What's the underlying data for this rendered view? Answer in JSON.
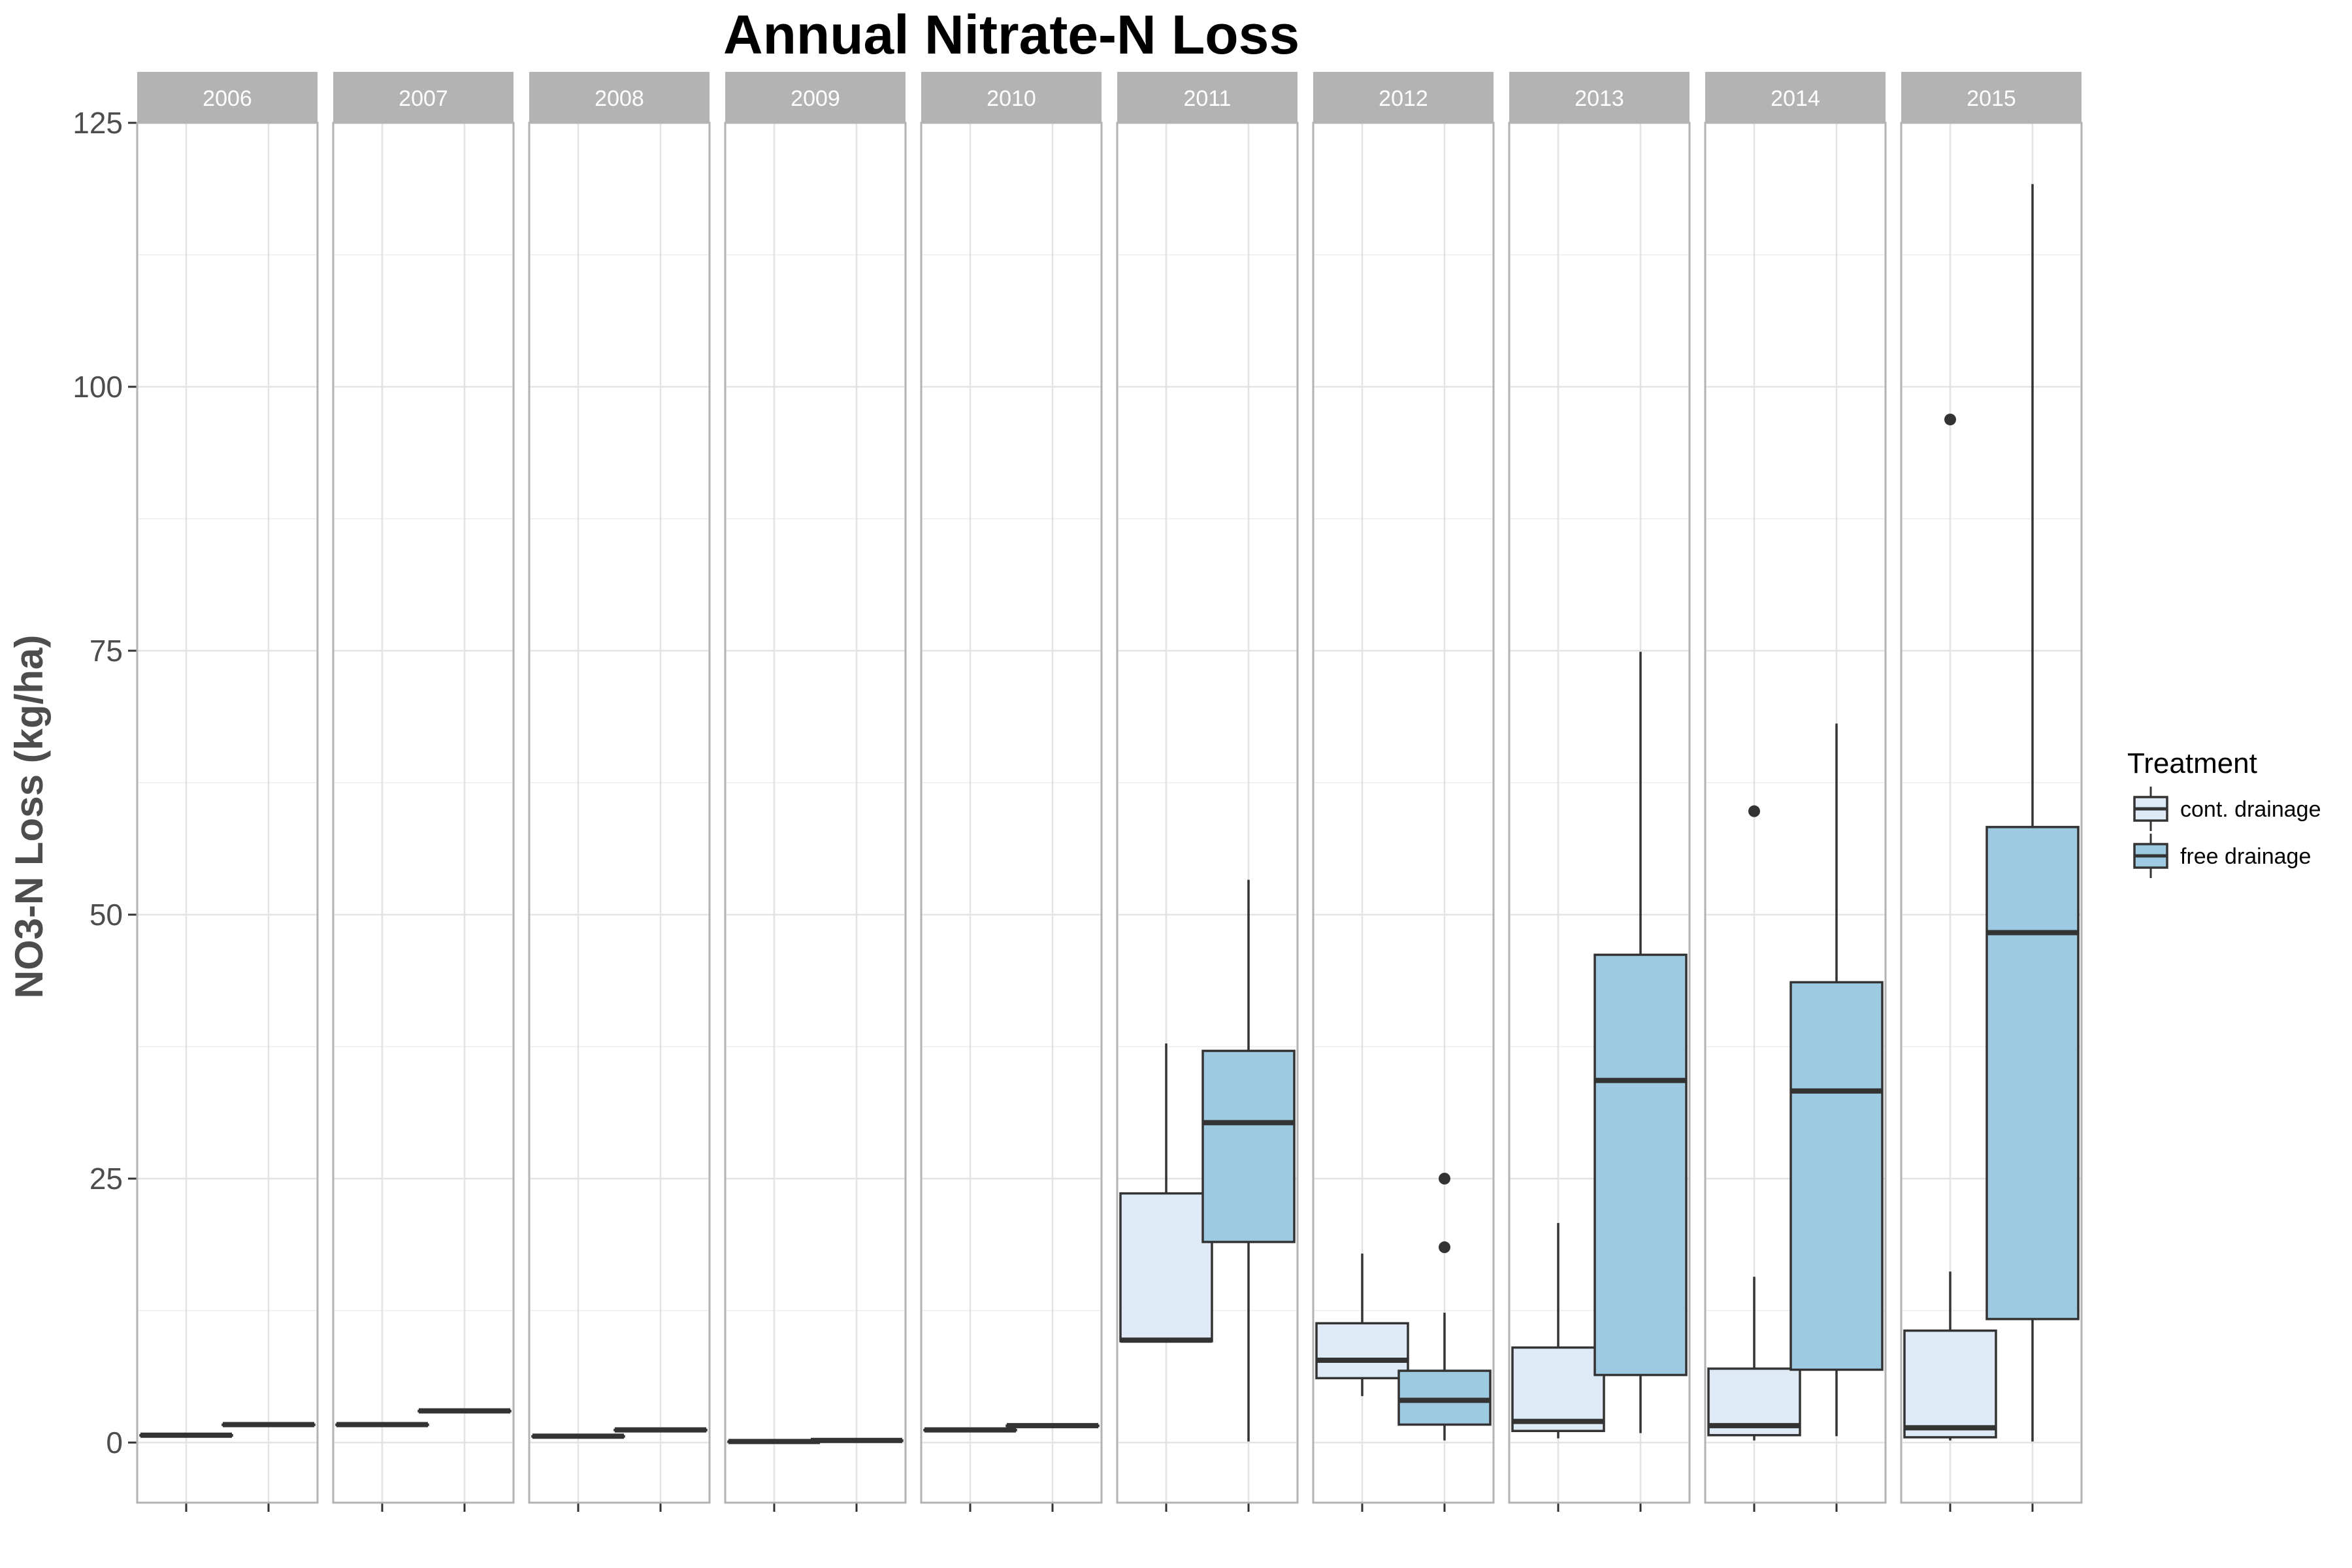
{
  "chart_data": {
    "type": "box",
    "title": "Annual Nitrate-N Loss",
    "xlabel": "",
    "ylabel": "NO3-N Loss (kg/ha)",
    "ylim": [
      -6,
      126
    ],
    "y_ticks": [
      0,
      25,
      50,
      75,
      100,
      125
    ],
    "grid": true,
    "legend": {
      "title": "Treatment",
      "placement": "right",
      "entries": [
        {
          "name": "cont. drainage",
          "color": "#deebf7"
        },
        {
          "name": "free drainage",
          "color": "#9ecae1"
        }
      ]
    },
    "facets": [
      "2006",
      "2007",
      "2008",
      "2009",
      "2010",
      "2011",
      "2012",
      "2013",
      "2014",
      "2015"
    ],
    "series": [
      {
        "name": "cont. drainage",
        "color": "#deebf7",
        "boxes": [
          {
            "facet": "2006",
            "min": 0.7,
            "q1": 0.7,
            "median": 0.7,
            "q3": 0.7,
            "max": 0.7,
            "outliers": []
          },
          {
            "facet": "2007",
            "min": 1.7,
            "q1": 1.7,
            "median": 1.7,
            "q3": 1.7,
            "max": 1.7,
            "outliers": []
          },
          {
            "facet": "2008",
            "min": 0.6,
            "q1": 0.6,
            "median": 0.6,
            "q3": 0.6,
            "max": 0.6,
            "outliers": []
          },
          {
            "facet": "2009",
            "min": 0.1,
            "q1": 0.1,
            "median": 0.1,
            "q3": 0.1,
            "max": 0.1,
            "outliers": []
          },
          {
            "facet": "2010",
            "min": 1.2,
            "q1": 1.2,
            "median": 1.2,
            "q3": 1.2,
            "max": 1.2,
            "outliers": []
          },
          {
            "facet": "2011",
            "min": 9.6,
            "q1": 9.6,
            "median": 9.7,
            "q3": 23.6,
            "max": 37.8,
            "outliers": []
          },
          {
            "facet": "2012",
            "min": 4.4,
            "q1": 6.1,
            "median": 7.8,
            "q3": 11.3,
            "max": 17.9,
            "outliers": []
          },
          {
            "facet": "2013",
            "min": 0.4,
            "q1": 1.1,
            "median": 2.0,
            "q3": 9.0,
            "max": 20.8,
            "outliers": []
          },
          {
            "facet": "2014",
            "min": 0.2,
            "q1": 0.7,
            "median": 1.6,
            "q3": 7.0,
            "max": 15.7,
            "outliers": [
              59.8
            ]
          },
          {
            "facet": "2015",
            "min": 0.2,
            "q1": 0.5,
            "median": 1.4,
            "q3": 10.6,
            "max": 16.2,
            "outliers": [
              96.9
            ]
          }
        ]
      },
      {
        "name": "free drainage",
        "color": "#9ecae1",
        "boxes": [
          {
            "facet": "2006",
            "min": 1.7,
            "q1": 1.7,
            "median": 1.7,
            "q3": 1.7,
            "max": 1.7,
            "outliers": []
          },
          {
            "facet": "2007",
            "min": 3.0,
            "q1": 3.0,
            "median": 3.0,
            "q3": 3.0,
            "max": 3.0,
            "outliers": []
          },
          {
            "facet": "2008",
            "min": 1.2,
            "q1": 1.2,
            "median": 1.2,
            "q3": 1.2,
            "max": 1.2,
            "outliers": []
          },
          {
            "facet": "2009",
            "min": 0.2,
            "q1": 0.2,
            "median": 0.2,
            "q3": 0.2,
            "max": 0.2,
            "outliers": []
          },
          {
            "facet": "2010",
            "min": 1.6,
            "q1": 1.6,
            "median": 1.6,
            "q3": 1.6,
            "max": 1.6,
            "outliers": []
          },
          {
            "facet": "2011",
            "min": 0.1,
            "q1": 19.0,
            "median": 30.3,
            "q3": 37.1,
            "max": 53.3,
            "outliers": []
          },
          {
            "facet": "2012",
            "min": 0.2,
            "q1": 1.7,
            "median": 4.0,
            "q3": 6.8,
            "max": 12.3,
            "outliers": [
              18.5,
              25.0
            ]
          },
          {
            "facet": "2013",
            "min": 0.9,
            "q1": 6.4,
            "median": 34.3,
            "q3": 46.2,
            "max": 74.9,
            "outliers": []
          },
          {
            "facet": "2014",
            "min": 0.6,
            "q1": 6.9,
            "median": 33.3,
            "q3": 43.6,
            "max": 68.1,
            "outliers": []
          },
          {
            "facet": "2015",
            "min": 0.1,
            "q1": 11.7,
            "median": 48.3,
            "q3": 58.3,
            "max": 119.2,
            "outliers": []
          }
        ]
      }
    ]
  }
}
